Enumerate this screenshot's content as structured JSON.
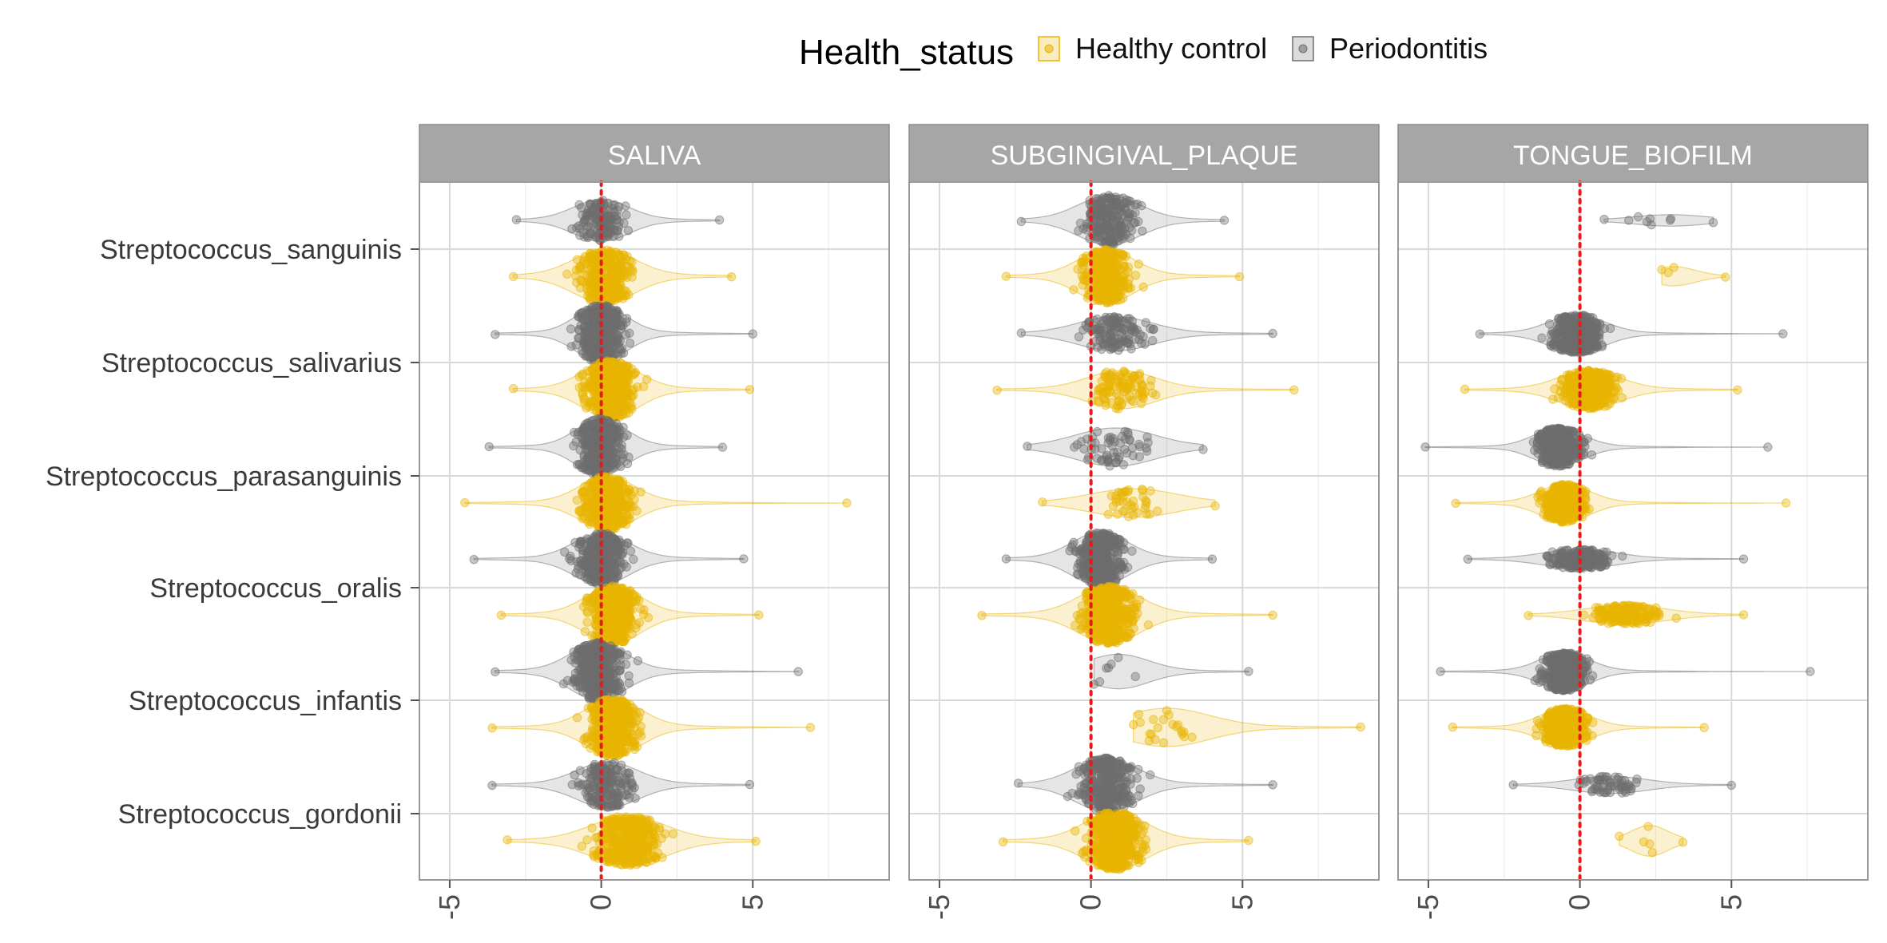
{
  "chart_data": {
    "type": "scatter",
    "subtype": "violin-beeswarm",
    "legend": {
      "title": "Health_status",
      "position": "top",
      "entries": [
        {
          "name": "Healthy control",
          "color": "#E8B400"
        },
        {
          "name": "Periodontitis",
          "color": "#6E6E6E"
        }
      ]
    },
    "panel_header_color": "#A6A6A6",
    "reference_line": {
      "x": 0,
      "color": "#E41A1C",
      "style": "dotted"
    },
    "xlim": [
      -6,
      9.5
    ],
    "x_ticks": [
      -5,
      0,
      5
    ],
    "x_tick_labels": [
      "-5",
      "0",
      "5"
    ],
    "categories": [
      "Streptococcus_sanguinis",
      "Streptococcus_salivarius",
      "Streptococcus_parasanguinis",
      "Streptococcus_oralis",
      "Streptococcus_infantis",
      "Streptococcus_gordonii"
    ],
    "series": [
      {
        "name": "Periodontitis",
        "color": "#6E6E6E"
      },
      {
        "name": "Healthy control",
        "color": "#E8B400"
      }
    ],
    "panels": [
      {
        "title": "SALIVA",
        "groups": [
          {
            "category": "Streptococcus_sanguinis",
            "series": "Periodontitis",
            "min": -2.8,
            "max": 3.9,
            "center": 0.0,
            "spread": 0.9,
            "n": 150,
            "peak_width": 0.22
          },
          {
            "category": "Streptococcus_sanguinis",
            "series": "Healthy control",
            "min": -2.9,
            "max": 4.3,
            "center": 0.1,
            "spread": 1.0,
            "n": 320,
            "peak_width": 0.28
          },
          {
            "category": "Streptococcus_salivarius",
            "series": "Periodontitis",
            "min": -3.5,
            "max": 5.0,
            "center": 0.0,
            "spread": 0.8,
            "n": 450,
            "peak_width": 0.3
          },
          {
            "category": "Streptococcus_salivarius",
            "series": "Healthy control",
            "min": -2.9,
            "max": 4.9,
            "center": 0.3,
            "spread": 0.9,
            "n": 480,
            "peak_width": 0.3
          },
          {
            "category": "Streptococcus_parasanguinis",
            "series": "Periodontitis",
            "min": -3.7,
            "max": 4.0,
            "center": 0.0,
            "spread": 0.8,
            "n": 380,
            "peak_width": 0.3
          },
          {
            "category": "Streptococcus_parasanguinis",
            "series": "Healthy control",
            "min": -4.5,
            "max": 8.1,
            "center": 0.2,
            "spread": 0.9,
            "n": 420,
            "peak_width": 0.28
          },
          {
            "category": "Streptococcus_oralis",
            "series": "Periodontitis",
            "min": -4.2,
            "max": 4.7,
            "center": 0.0,
            "spread": 0.9,
            "n": 380,
            "peak_width": 0.27
          },
          {
            "category": "Streptococcus_oralis",
            "series": "Healthy control",
            "min": -3.3,
            "max": 5.2,
            "center": 0.4,
            "spread": 0.9,
            "n": 420,
            "peak_width": 0.3
          },
          {
            "category": "Streptococcus_infantis",
            "series": "Periodontitis",
            "min": -3.5,
            "max": 6.5,
            "center": -0.1,
            "spread": 0.9,
            "n": 420,
            "peak_width": 0.3
          },
          {
            "category": "Streptococcus_infantis",
            "series": "Healthy control",
            "min": -3.6,
            "max": 6.9,
            "center": 0.4,
            "spread": 0.9,
            "n": 450,
            "peak_width": 0.3
          },
          {
            "category": "Streptococcus_gordonii",
            "series": "Periodontitis",
            "min": -3.6,
            "max": 4.9,
            "center": 0.2,
            "spread": 1.0,
            "n": 200,
            "peak_width": 0.24
          },
          {
            "category": "Streptococcus_gordonii",
            "series": "Healthy control",
            "min": -3.1,
            "max": 5.1,
            "center": 0.9,
            "spread": 1.2,
            "n": 380,
            "peak_width": 0.26
          }
        ]
      },
      {
        "title": "SUBGINGIVAL_PLAQUE",
        "groups": [
          {
            "category": "Streptococcus_sanguinis",
            "series": "Periodontitis",
            "min": -2.3,
            "max": 4.4,
            "center": 0.6,
            "spread": 1.0,
            "n": 220,
            "peak_width": 0.26
          },
          {
            "category": "Streptococcus_sanguinis",
            "series": "Healthy control",
            "min": -2.8,
            "max": 4.9,
            "center": 0.5,
            "spread": 0.9,
            "n": 300,
            "peak_width": 0.28
          },
          {
            "category": "Streptococcus_salivarius",
            "series": "Periodontitis",
            "min": -2.3,
            "max": 6.0,
            "center": 0.8,
            "spread": 1.2,
            "n": 130,
            "peak_width": 0.18
          },
          {
            "category": "Streptococcus_salivarius",
            "series": "Healthy control",
            "min": -3.1,
            "max": 6.7,
            "center": 1.0,
            "spread": 1.1,
            "n": 100,
            "peak_width": 0.2
          },
          {
            "category": "Streptococcus_parasanguinis",
            "series": "Periodontitis",
            "min": -2.1,
            "max": 3.7,
            "center": 0.8,
            "spread": 1.3,
            "n": 60,
            "peak_width": 0.2
          },
          {
            "category": "Streptococcus_parasanguinis",
            "series": "Healthy control",
            "min": -1.6,
            "max": 4.1,
            "center": 1.4,
            "spread": 1.4,
            "n": 40,
            "peak_width": 0.15
          },
          {
            "category": "Streptococcus_oralis",
            "series": "Periodontitis",
            "min": -2.8,
            "max": 4.0,
            "center": 0.3,
            "spread": 0.9,
            "n": 380,
            "peak_width": 0.28
          },
          {
            "category": "Streptococcus_oralis",
            "series": "Healthy control",
            "min": -3.6,
            "max": 6.0,
            "center": 0.6,
            "spread": 1.0,
            "n": 420,
            "peak_width": 0.3
          },
          {
            "category": "Streptococcus_infantis",
            "series": "Periodontitis",
            "min": 0.1,
            "max": 5.2,
            "center": 0.9,
            "spread": 1.0,
            "n": 8,
            "peak_width": 0.18
          },
          {
            "category": "Streptococcus_infantis",
            "series": "Healthy control",
            "min": 1.4,
            "max": 8.9,
            "center": 2.5,
            "spread": 1.4,
            "n": 22,
            "peak_width": 0.2
          },
          {
            "category": "Streptococcus_gordonii",
            "series": "Periodontitis",
            "min": -2.4,
            "max": 6.0,
            "center": 0.5,
            "spread": 1.0,
            "n": 320,
            "peak_width": 0.28
          },
          {
            "category": "Streptococcus_gordonii",
            "series": "Healthy control",
            "min": -2.9,
            "max": 5.2,
            "center": 0.8,
            "spread": 1.0,
            "n": 460,
            "peak_width": 0.32
          }
        ]
      },
      {
        "title": "TONGUE_BIOFILM",
        "groups": [
          {
            "category": "Streptococcus_sanguinis",
            "series": "Periodontitis",
            "min": 0.8,
            "max": 4.4,
            "center": 3.0,
            "spread": 1.2,
            "n": 9,
            "peak_width": 0.06
          },
          {
            "category": "Streptococcus_sanguinis",
            "series": "Healthy control",
            "min": 2.7,
            "max": 4.8,
            "center": 3.1,
            "spread": 0.7,
            "n": 4,
            "peak_width": 0.1
          },
          {
            "category": "Streptococcus_salivarius",
            "series": "Periodontitis",
            "min": -3.3,
            "max": 6.7,
            "center": -0.1,
            "spread": 0.9,
            "n": 420,
            "peak_width": 0.2
          },
          {
            "category": "Streptococcus_salivarius",
            "series": "Healthy control",
            "min": -3.8,
            "max": 5.2,
            "center": 0.3,
            "spread": 1.0,
            "n": 400,
            "peak_width": 0.2
          },
          {
            "category": "Streptococcus_parasanguinis",
            "series": "Periodontitis",
            "min": -5.1,
            "max": 6.2,
            "center": -0.7,
            "spread": 0.8,
            "n": 400,
            "peak_width": 0.2
          },
          {
            "category": "Streptococcus_parasanguinis",
            "series": "Healthy control",
            "min": -4.1,
            "max": 6.8,
            "center": -0.5,
            "spread": 0.8,
            "n": 380,
            "peak_width": 0.2
          },
          {
            "category": "Streptococcus_oralis",
            "series": "Periodontitis",
            "min": -3.7,
            "max": 5.4,
            "center": 0.0,
            "spread": 1.2,
            "n": 200,
            "peak_width": 0.1
          },
          {
            "category": "Streptococcus_oralis",
            "series": "Healthy control",
            "min": -1.7,
            "max": 5.4,
            "center": 1.5,
            "spread": 1.3,
            "n": 170,
            "peak_width": 0.1
          },
          {
            "category": "Streptococcus_infantis",
            "series": "Periodontitis",
            "min": -4.6,
            "max": 7.6,
            "center": -0.5,
            "spread": 0.8,
            "n": 400,
            "peak_width": 0.2
          },
          {
            "category": "Streptococcus_infantis",
            "series": "Healthy control",
            "min": -4.2,
            "max": 4.1,
            "center": -0.5,
            "spread": 0.8,
            "n": 400,
            "peak_width": 0.2
          },
          {
            "category": "Streptococcus_gordonii",
            "series": "Periodontitis",
            "min": -2.2,
            "max": 5.0,
            "center": 1.0,
            "spread": 1.2,
            "n": 60,
            "peak_width": 0.09
          },
          {
            "category": "Streptococcus_gordonii",
            "series": "Healthy control",
            "min": 1.3,
            "max": 3.4,
            "center": 2.3,
            "spread": 0.6,
            "n": 6,
            "peak_width": 0.16
          }
        ]
      }
    ]
  }
}
